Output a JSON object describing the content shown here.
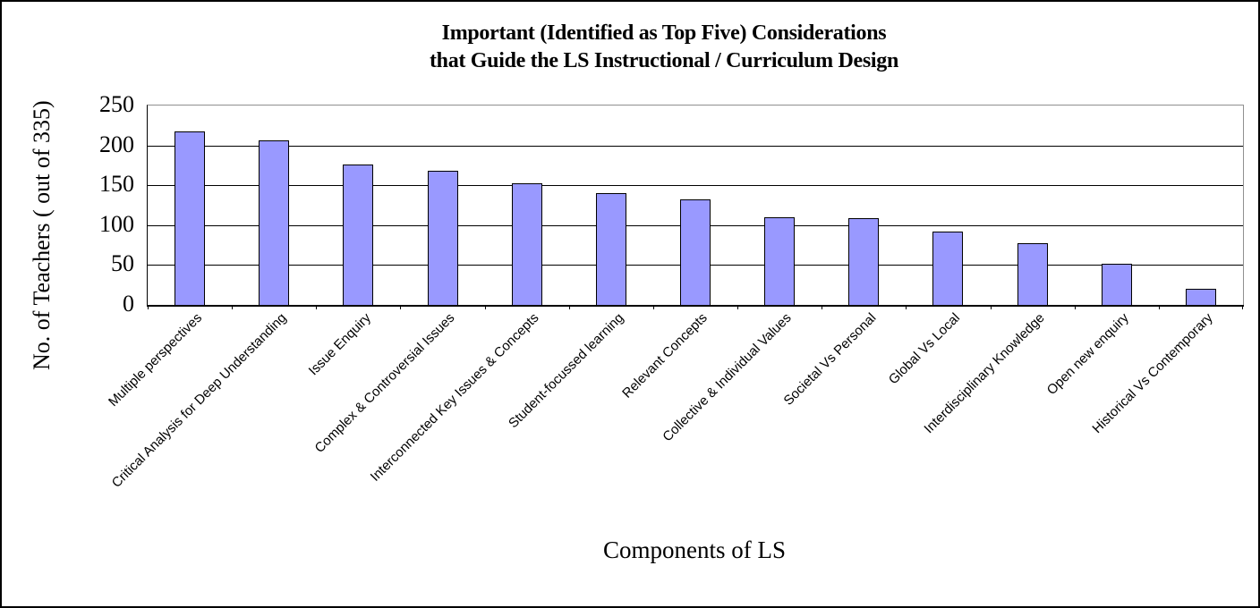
{
  "window": {
    "background": "#FFFFFF",
    "border_color": "#000000"
  },
  "chart_data": {
    "type": "bar",
    "title": [
      "Important (Identified as Top Five) Considerations",
      "that Guide the LS Instructional / Curriculum Design"
    ],
    "ylabel": "No. of Teachers ( out of 335)",
    "xlabel": "Components of LS",
    "ylim": [
      0,
      250
    ],
    "ytick_step": 50,
    "yticks": [
      250,
      200,
      150,
      100,
      50,
      0
    ],
    "categories": [
      "Multiple perspectives",
      "Critical Analysis for Deep Understanding",
      "Issue Enquiry",
      "Complex & Controversial Issues",
      "Interconnected Key Issues & Concepts",
      "Student-focussed learning",
      "Relevant Concepts",
      "Collective & Individual Values",
      "Societal Vs Personal",
      "Global Vs Local",
      "Interdisciplinary Knowledge",
      "Open new enquiry",
      "Historical Vs Contemporary"
    ],
    "values": [
      218,
      206,
      176,
      168,
      152,
      140,
      132,
      110,
      109,
      92,
      77,
      52,
      20
    ],
    "bar_color": "#9999FF",
    "bar_border_color": "#000000",
    "gridline_color": "#000000",
    "plot_border_color": "#909090",
    "axis_color": "#000000",
    "grid": true,
    "legend": "none"
  }
}
